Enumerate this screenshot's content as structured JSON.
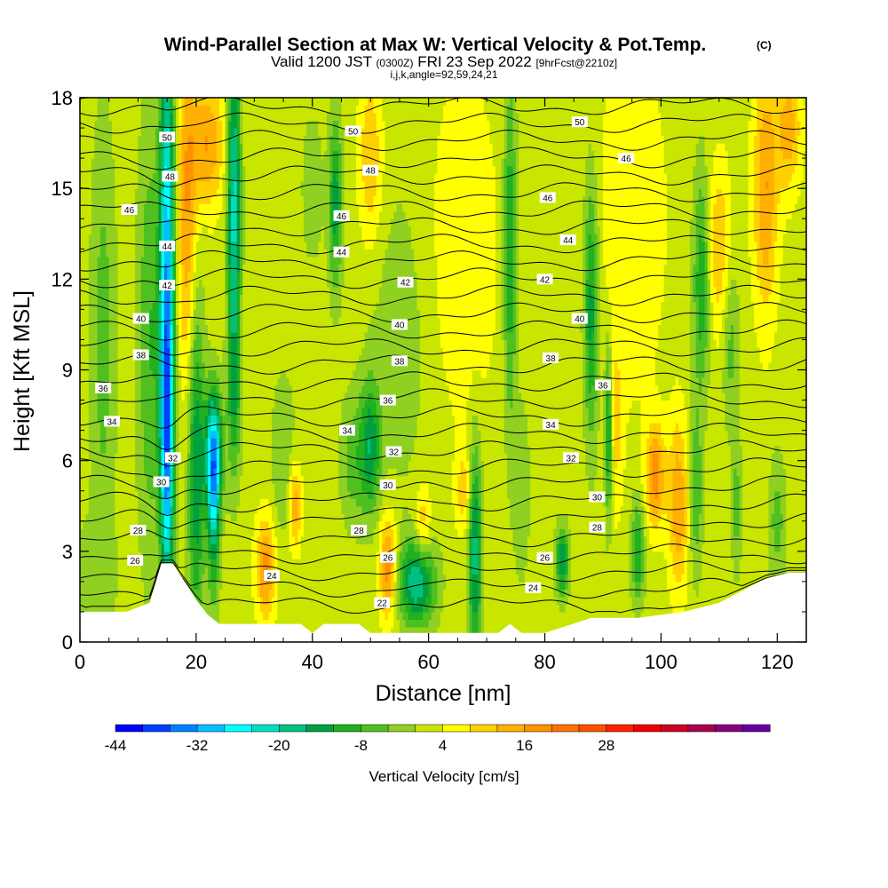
{
  "title": {
    "main": "Wind-Parallel Section at Max W: Vertical Velocity & Pot.Temp.",
    "copyright": "(C)",
    "sub_valid": "Valid 1200 JST",
    "sub_z": "(0300Z)",
    "sub_date": "FRI 23 Sep 2022",
    "sub_fcst": "[9hrFcst@2210z]",
    "sub3": "i,j,k,angle=92,59,24,21"
  },
  "chart_data": {
    "type": "heatmap",
    "xlabel": "Distance [nm]",
    "ylabel": "Height [Kft MSL]",
    "xlim": [
      0,
      125
    ],
    "ylim": [
      0,
      18
    ],
    "xticks": [
      0,
      20,
      40,
      60,
      80,
      100,
      120
    ],
    "yticks": [
      0,
      3,
      6,
      9,
      12,
      15,
      18
    ],
    "background_w": 2,
    "colorbar": {
      "label": "Vertical Velocity [cm/s]",
      "levels_start": -44,
      "levels_step": 4,
      "tick_values": [
        -44,
        -32,
        -20,
        -8,
        4,
        16,
        28
      ],
      "colors": [
        "#0000ff",
        "#0040ff",
        "#0080ff",
        "#00c0ff",
        "#00ffff",
        "#00e0c0",
        "#00c080",
        "#00a040",
        "#20b020",
        "#50c020",
        "#90d020",
        "#c8e600",
        "#ffff00",
        "#ffd000",
        "#ffb000",
        "#ff9000",
        "#ff7000",
        "#ff5000",
        "#ff2000",
        "#ee0000",
        "#cc0020",
        "#aa0050",
        "#880080",
        "#6600a0"
      ]
    },
    "terrain": [
      [
        0,
        1.0
      ],
      [
        4,
        1.0
      ],
      [
        8,
        1.0
      ],
      [
        12,
        1.3
      ],
      [
        14,
        2.6
      ],
      [
        16,
        2.6
      ],
      [
        18,
        2.0
      ],
      [
        20,
        1.4
      ],
      [
        22,
        0.9
      ],
      [
        24,
        0.6
      ],
      [
        28,
        0.6
      ],
      [
        34,
        0.6
      ],
      [
        38,
        0.6
      ],
      [
        40,
        0.3
      ],
      [
        42,
        0.6
      ],
      [
        48,
        0.6
      ],
      [
        50,
        0.3
      ],
      [
        55,
        0.3
      ],
      [
        60,
        0.3
      ],
      [
        66,
        0.3
      ],
      [
        72,
        0.3
      ],
      [
        74,
        0.6
      ],
      [
        76,
        0.3
      ],
      [
        80,
        0.3
      ],
      [
        88,
        0.8
      ],
      [
        96,
        0.8
      ],
      [
        104,
        1.0
      ],
      [
        110,
        1.3
      ],
      [
        114,
        1.7
      ],
      [
        118,
        2.1
      ],
      [
        122,
        2.3
      ],
      [
        125,
        2.3
      ]
    ],
    "w_features": [
      {
        "x": 15,
        "y": 12,
        "sx": 0.9,
        "sy": 6,
        "w": -32
      },
      {
        "x": 15,
        "y": 6,
        "sx": 0.8,
        "sy": 3,
        "w": -20
      },
      {
        "x": 20,
        "y": 6,
        "sx": 1.0,
        "sy": 4,
        "w": -18
      },
      {
        "x": 23,
        "y": 6.2,
        "sx": 1.0,
        "sy": 1.5,
        "w": -30
      },
      {
        "x": 23,
        "y": 4,
        "sx": 0.7,
        "sy": 2,
        "w": -16
      },
      {
        "x": 26.5,
        "y": 14.5,
        "sx": 0.8,
        "sy": 4,
        "w": -24
      },
      {
        "x": 26.5,
        "y": 8,
        "sx": 0.8,
        "sy": 2,
        "w": -10
      },
      {
        "x": 18.5,
        "y": 14,
        "sx": 1.2,
        "sy": 4,
        "w": 14
      },
      {
        "x": 22,
        "y": 16.5,
        "sx": 2.0,
        "sy": 1.5,
        "w": 14
      },
      {
        "x": 12,
        "y": 10,
        "sx": 1.5,
        "sy": 5,
        "w": -10
      },
      {
        "x": 4,
        "y": 10,
        "sx": 1.5,
        "sy": 5,
        "w": -8
      },
      {
        "x": 32,
        "y": 2.5,
        "sx": 1.2,
        "sy": 1.2,
        "w": 16
      },
      {
        "x": 37,
        "y": 4.5,
        "sx": 0.8,
        "sy": 1,
        "w": 14
      },
      {
        "x": 35,
        "y": 6,
        "sx": 1.5,
        "sy": 2,
        "w": -6
      },
      {
        "x": 44,
        "y": 14.5,
        "sx": 0.8,
        "sy": 2,
        "w": -16
      },
      {
        "x": 40,
        "y": 15,
        "sx": 1.5,
        "sy": 2,
        "w": -4
      },
      {
        "x": 50,
        "y": 16,
        "sx": 1.5,
        "sy": 2,
        "w": 10
      },
      {
        "x": 50,
        "y": 6.5,
        "sx": 1.2,
        "sy": 1.5,
        "w": -16
      },
      {
        "x": 47,
        "y": 6,
        "sx": 1.5,
        "sy": 1.5,
        "w": -8
      },
      {
        "x": 53,
        "y": 2.5,
        "sx": 1.0,
        "sy": 1.2,
        "w": 18
      },
      {
        "x": 58,
        "y": 2,
        "sx": 2.2,
        "sy": 1.0,
        "w": -22
      },
      {
        "x": 59,
        "y": 3.8,
        "sx": 1.0,
        "sy": 1.0,
        "w": 10
      },
      {
        "x": 68,
        "y": 3,
        "sx": 0.8,
        "sy": 2.5,
        "w": -20
      },
      {
        "x": 66,
        "y": 5,
        "sx": 1.0,
        "sy": 1.0,
        "w": 8
      },
      {
        "x": 74,
        "y": 13,
        "sx": 0.8,
        "sy": 4,
        "w": -14
      },
      {
        "x": 76,
        "y": 5,
        "sx": 1.0,
        "sy": 2,
        "w": -6
      },
      {
        "x": 83,
        "y": 2.7,
        "sx": 0.8,
        "sy": 0.8,
        "w": -18
      },
      {
        "x": 88,
        "y": 11,
        "sx": 0.9,
        "sy": 3,
        "w": -16
      },
      {
        "x": 91,
        "y": 7,
        "sx": 0.5,
        "sy": 2,
        "w": -20
      },
      {
        "x": 92,
        "y": 7,
        "sx": 1.0,
        "sy": 2,
        "w": 8
      },
      {
        "x": 96,
        "y": 3,
        "sx": 0.8,
        "sy": 1.2,
        "w": -14
      },
      {
        "x": 99,
        "y": 5.5,
        "sx": 1.2,
        "sy": 1.2,
        "w": 16
      },
      {
        "x": 103,
        "y": 4.5,
        "sx": 1.2,
        "sy": 2,
        "w": 14
      },
      {
        "x": 107,
        "y": 12,
        "sx": 1.0,
        "sy": 2.5,
        "w": -14
      },
      {
        "x": 106,
        "y": 5,
        "sx": 0.8,
        "sy": 2,
        "w": -10
      },
      {
        "x": 112,
        "y": 10,
        "sx": 1.0,
        "sy": 2,
        "w": -8
      },
      {
        "x": 110,
        "y": 13,
        "sx": 1.5,
        "sy": 2,
        "w": 10
      },
      {
        "x": 118,
        "y": 15,
        "sx": 1.5,
        "sy": 3,
        "w": 14
      },
      {
        "x": 122,
        "y": 17,
        "sx": 1.5,
        "sy": 1.5,
        "w": 12
      },
      {
        "x": 120,
        "y": 4,
        "sx": 1.0,
        "sy": 1.5,
        "w": -8
      },
      {
        "x": 113,
        "y": 4.5,
        "sx": 0.6,
        "sy": 1.5,
        "w": -8
      },
      {
        "x": 2,
        "y": 2,
        "sx": 3.0,
        "sy": 1.5,
        "w": -4
      },
      {
        "x": 66,
        "y": 13,
        "sx": 4.0,
        "sy": 4,
        "w": 6
      },
      {
        "x": 95,
        "y": 14,
        "sx": 4.0,
        "sy": 4,
        "w": 6
      },
      {
        "x": 55,
        "y": 10,
        "sx": 4.0,
        "sy": 4,
        "w": -4
      }
    ],
    "theta_contours": {
      "values": [
        22,
        23,
        24,
        25,
        26,
        27,
        28,
        29,
        30,
        31,
        32,
        33,
        34,
        35,
        36,
        37,
        38,
        39,
        40,
        41,
        42,
        43,
        44,
        45,
        46,
        47,
        48,
        49,
        50,
        51,
        52
      ]
    },
    "theta_labels": [
      {
        "x": 15,
        "y": 16.7,
        "text": "50"
      },
      {
        "x": 47,
        "y": 16.9,
        "text": "50"
      },
      {
        "x": 86,
        "y": 17.2,
        "text": "50"
      },
      {
        "x": 15.5,
        "y": 15.4,
        "text": "48"
      },
      {
        "x": 50,
        "y": 15.6,
        "text": "48"
      },
      {
        "x": 94,
        "y": 16.0,
        "text": "46"
      },
      {
        "x": 8.5,
        "y": 14.3,
        "text": "46"
      },
      {
        "x": 45,
        "y": 14.1,
        "text": "46"
      },
      {
        "x": 80.5,
        "y": 14.7,
        "text": "46"
      },
      {
        "x": 15,
        "y": 13.1,
        "text": "44"
      },
      {
        "x": 45,
        "y": 12.9,
        "text": "44"
      },
      {
        "x": 84,
        "y": 13.3,
        "text": "44"
      },
      {
        "x": 15,
        "y": 11.8,
        "text": "42"
      },
      {
        "x": 56,
        "y": 11.9,
        "text": "42"
      },
      {
        "x": 80,
        "y": 12.0,
        "text": "42"
      },
      {
        "x": 10.5,
        "y": 10.7,
        "text": "40"
      },
      {
        "x": 55,
        "y": 10.5,
        "text": "40"
      },
      {
        "x": 86,
        "y": 10.7,
        "text": "40"
      },
      {
        "x": 10.5,
        "y": 9.5,
        "text": "38"
      },
      {
        "x": 55,
        "y": 9.3,
        "text": "38"
      },
      {
        "x": 81,
        "y": 9.4,
        "text": "38"
      },
      {
        "x": 4,
        "y": 8.4,
        "text": "36"
      },
      {
        "x": 53,
        "y": 8.0,
        "text": "36"
      },
      {
        "x": 90,
        "y": 8.5,
        "text": "36"
      },
      {
        "x": 5.5,
        "y": 7.3,
        "text": "34"
      },
      {
        "x": 46,
        "y": 7.0,
        "text": "34"
      },
      {
        "x": 81,
        "y": 7.2,
        "text": "34"
      },
      {
        "x": 16,
        "y": 6.1,
        "text": "32"
      },
      {
        "x": 54,
        "y": 6.3,
        "text": "32"
      },
      {
        "x": 84.5,
        "y": 6.1,
        "text": "32"
      },
      {
        "x": 14,
        "y": 5.3,
        "text": "30"
      },
      {
        "x": 53,
        "y": 5.2,
        "text": "30"
      },
      {
        "x": 89,
        "y": 4.8,
        "text": "30"
      },
      {
        "x": 10,
        "y": 3.7,
        "text": "28"
      },
      {
        "x": 48,
        "y": 3.7,
        "text": "28"
      },
      {
        "x": 89,
        "y": 3.8,
        "text": "28"
      },
      {
        "x": 9.5,
        "y": 2.7,
        "text": "26"
      },
      {
        "x": 53,
        "y": 2.8,
        "text": "26"
      },
      {
        "x": 80,
        "y": 2.8,
        "text": "26"
      },
      {
        "x": 33,
        "y": 2.2,
        "text": "24"
      },
      {
        "x": 78,
        "y": 1.8,
        "text": "24"
      },
      {
        "x": 52,
        "y": 1.3,
        "text": "22"
      }
    ]
  }
}
